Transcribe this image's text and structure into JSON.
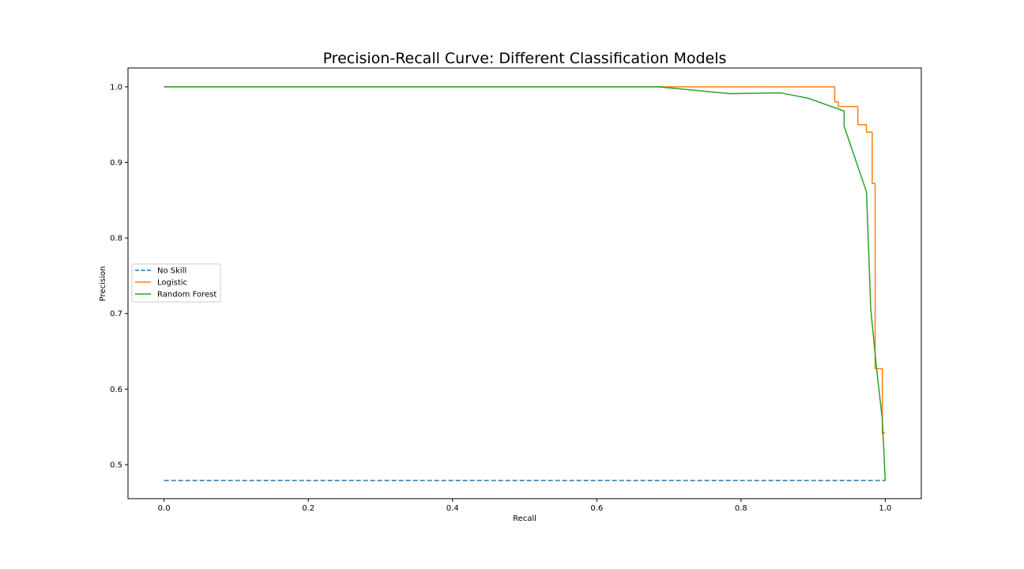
{
  "chart_data": {
    "type": "line",
    "title": "Precision-Recall Curve: Different Classification Models",
    "xlabel": "Recall",
    "ylabel": "Precision",
    "xlim": [
      -0.05,
      1.05
    ],
    "ylim": [
      0.455,
      1.025
    ],
    "xticks": [
      0.0,
      0.2,
      0.4,
      0.6,
      0.8,
      1.0
    ],
    "xtick_labels": [
      "0.0",
      "0.2",
      "0.4",
      "0.6",
      "0.8",
      "1.0"
    ],
    "yticks": [
      0.5,
      0.6,
      0.7,
      0.8,
      0.9,
      1.0
    ],
    "ytick_labels": [
      "0.5",
      "0.6",
      "0.7",
      "0.8",
      "0.9",
      "1.0"
    ],
    "grid": false,
    "legend": {
      "position": "center-left"
    },
    "series": [
      {
        "name": "No Skill",
        "color": "#1f77b4",
        "dashed": true,
        "x": [
          0.0,
          1.0
        ],
        "y": [
          0.479,
          0.479
        ]
      },
      {
        "name": "Logistic",
        "color": "#ff7f0e",
        "dashed": false,
        "x": [
          0.0,
          0.93,
          0.93,
          0.935,
          0.935,
          0.94,
          0.94,
          0.962,
          0.962,
          0.974,
          0.974,
          0.977,
          0.977,
          0.982,
          0.982,
          0.986,
          0.986,
          0.991,
          0.991,
          0.996,
          0.996,
          1.0
        ],
        "y": [
          1.0,
          1.0,
          0.98,
          0.98,
          0.974,
          0.974,
          0.974,
          0.974,
          0.95,
          0.95,
          0.94,
          0.94,
          0.94,
          0.94,
          0.872,
          0.872,
          0.627,
          0.627,
          0.627,
          0.627,
          0.541,
          0.543
        ]
      },
      {
        "name": "Random Forest",
        "color": "#2ca02c",
        "dashed": false,
        "x": [
          0.0,
          0.685,
          0.785,
          0.855,
          0.893,
          0.943,
          0.943,
          0.974,
          0.98,
          0.988,
          0.996,
          1.0
        ],
        "y": [
          1.0,
          1.0,
          0.991,
          0.992,
          0.985,
          0.968,
          0.948,
          0.861,
          0.705,
          0.627,
          0.56,
          0.479
        ]
      }
    ]
  }
}
